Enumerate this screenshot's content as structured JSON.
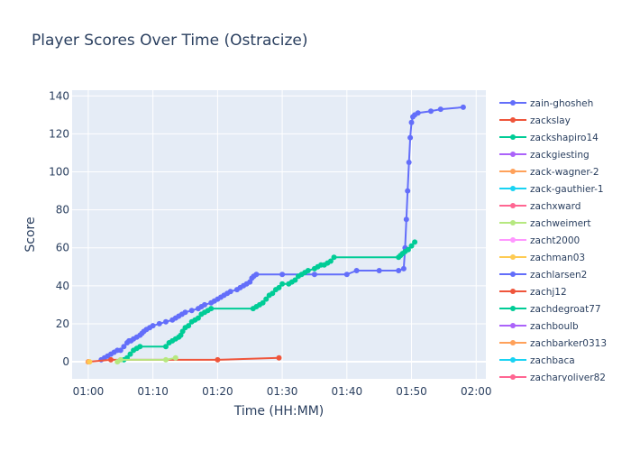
{
  "chart_data": {
    "type": "line",
    "title": "Player Scores Over Time (Ostracize)",
    "xlabel": "Time (HH:MM)",
    "ylabel": "Score",
    "x_unit": "minutes after 00:00",
    "xlim": [
      57.5,
      121.5
    ],
    "ylim": [
      -9,
      143
    ],
    "x_ticks": [
      {
        "value": 60,
        "label": "01:00"
      },
      {
        "value": 70,
        "label": "01:10"
      },
      {
        "value": 80,
        "label": "01:20"
      },
      {
        "value": 90,
        "label": "01:30"
      },
      {
        "value": 100,
        "label": "01:40"
      },
      {
        "value": 110,
        "label": "01:50"
      },
      {
        "value": 120,
        "label": "02:00"
      }
    ],
    "y_ticks": [
      0,
      20,
      40,
      60,
      80,
      100,
      120,
      140
    ],
    "grid": true,
    "legend_position": "right",
    "series": [
      {
        "name": "zain-ghosheh",
        "color": "#636efa",
        "x": [
          62.0,
          62.5,
          63.0,
          63.5,
          64.0,
          64.5,
          65.0,
          65.5,
          66.0,
          66.3,
          66.6,
          67.0,
          67.5,
          68.0,
          68.3,
          68.6,
          69.0,
          69.5,
          70.0,
          71.0,
          72.0,
          73.0,
          73.5,
          74.0,
          74.5,
          75.0,
          76.0,
          77.0,
          77.5,
          78.0,
          79.0,
          79.5,
          80.0,
          80.5,
          81.0,
          81.5,
          82.0,
          83.0,
          83.5,
          84.0,
          84.5,
          85.0,
          85.3,
          85.6,
          86.0,
          90.0,
          95.0,
          100.0,
          101.5,
          105.0,
          108.0,
          108.8,
          109.0,
          109.2,
          109.4,
          109.6,
          109.8,
          110.0,
          110.2,
          110.5,
          111.0,
          113.0,
          114.5,
          118.0
        ],
        "y": [
          1,
          2,
          3,
          4,
          5,
          6,
          6,
          8,
          10,
          11,
          11,
          12,
          13,
          14,
          15,
          16,
          17,
          18,
          19,
          20,
          21,
          22,
          23,
          24,
          25,
          26,
          27,
          28,
          29,
          30,
          31,
          32,
          33,
          34,
          35,
          36,
          37,
          38,
          39,
          40,
          41,
          42,
          44,
          45,
          46,
          46,
          46,
          46,
          48,
          48,
          48,
          49,
          60,
          75,
          90,
          105,
          118,
          126,
          129,
          130,
          131,
          132,
          133,
          134
        ]
      },
      {
        "name": "zackslay",
        "color": "#ef553b",
        "x": [
          60.0,
          63.5,
          80.0,
          89.5
        ],
        "y": [
          0,
          1,
          1,
          2
        ]
      },
      {
        "name": "zackshapiro14",
        "color": "#00cc96",
        "x": [
          65.5,
          66.0,
          66.5,
          67.0,
          67.5,
          68.0,
          72.0,
          72.5,
          73.0,
          73.5,
          74.0,
          74.3,
          74.6,
          75.0,
          75.5,
          76.0,
          76.5,
          77.0,
          77.5,
          78.0,
          78.5,
          79.0,
          85.5,
          86.0,
          86.5,
          87.0,
          87.5,
          88.0,
          88.5,
          89.0,
          89.5,
          90.0,
          91.0,
          91.5,
          92.0,
          92.5,
          93.0,
          93.5,
          94.0,
          95.0,
          95.5,
          96.0,
          96.5,
          97.0,
          97.5,
          98.0,
          108.0,
          108.3,
          108.6,
          109.0,
          109.5,
          110.0,
          110.5
        ],
        "y": [
          1,
          2,
          4,
          6,
          7,
          8,
          8,
          10,
          11,
          12,
          13,
          14,
          16,
          18,
          19,
          21,
          22,
          23,
          25,
          26,
          27,
          28,
          28,
          29,
          30,
          31,
          33,
          35,
          36,
          38,
          39,
          41,
          41,
          42,
          43,
          45,
          46,
          47,
          48,
          49,
          50,
          51,
          51,
          52,
          53,
          55,
          55,
          56,
          57,
          58,
          59,
          61,
          63
        ]
      },
      {
        "name": "zackgiesting",
        "color": "#ab63fa",
        "x": [],
        "y": []
      },
      {
        "name": "zack-wagner-2",
        "color": "#ffa15a",
        "x": [
          60.0
        ],
        "y": [
          0
        ]
      },
      {
        "name": "zack-gauthier-1",
        "color": "#19d3f3",
        "x": [],
        "y": []
      },
      {
        "name": "zachxward",
        "color": "#ff6692",
        "x": [],
        "y": []
      },
      {
        "name": "zachweimert",
        "color": "#b6e880",
        "x": [
          64.5,
          65.0,
          72.0,
          73.5
        ],
        "y": [
          0,
          1,
          1,
          2
        ]
      },
      {
        "name": "zacht2000",
        "color": "#ff97ff",
        "x": [],
        "y": []
      },
      {
        "name": "zachman03",
        "color": "#fecb52",
        "x": [
          60.2
        ],
        "y": [
          0
        ]
      },
      {
        "name": "zachlarsen2",
        "color": "#636efa",
        "x": [],
        "y": []
      },
      {
        "name": "zachj12",
        "color": "#ef553b",
        "x": [],
        "y": []
      },
      {
        "name": "zachdegroat77",
        "color": "#00cc96",
        "x": [],
        "y": []
      },
      {
        "name": "zachboulb",
        "color": "#ab63fa",
        "x": [],
        "y": []
      },
      {
        "name": "zachbarker0313",
        "color": "#ffa15a",
        "x": [],
        "y": []
      },
      {
        "name": "zachbaca",
        "color": "#19d3f3",
        "x": [],
        "y": []
      },
      {
        "name": "zacharyoliver82",
        "color": "#ff6692",
        "x": [],
        "y": []
      }
    ]
  }
}
